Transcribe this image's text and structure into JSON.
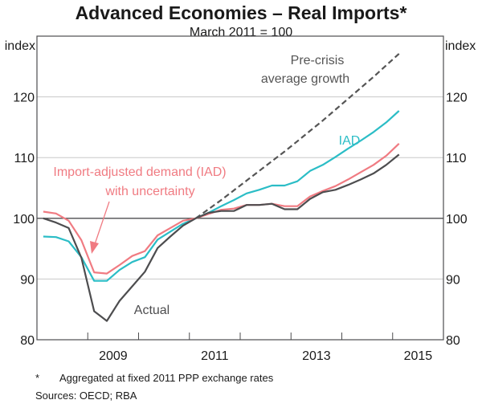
{
  "chart_data": {
    "type": "line",
    "title": "Advanced Economies – Real Imports*",
    "subtitle": "March 2011 = 100",
    "ylabel_left": "index",
    "ylabel_right": "index",
    "xlabel": "",
    "ylim": [
      80,
      130
    ],
    "yticks": [
      80,
      90,
      100,
      110,
      120
    ],
    "xlim": [
      2008.0,
      2016.0
    ],
    "xtick_labels": [
      {
        "label": "2009",
        "at": 2009.5
      },
      {
        "label": "2011",
        "at": 2011.5
      },
      {
        "label": "2013",
        "at": 2013.5
      },
      {
        "label": "2015",
        "at": 2015.5
      }
    ],
    "xtick_marks": [
      2009,
      2010,
      2011,
      2012,
      2013,
      2014,
      2015
    ],
    "grid": true,
    "reference_line": 100,
    "x": [
      "2008Q1",
      "2008Q2",
      "2008Q3",
      "2008Q4",
      "2009Q1",
      "2009Q2",
      "2009Q3",
      "2009Q4",
      "2010Q1",
      "2010Q2",
      "2010Q3",
      "2010Q4",
      "2011Q1",
      "2011Q2",
      "2011Q3",
      "2011Q4",
      "2012Q1",
      "2012Q2",
      "2012Q3",
      "2012Q4",
      "2013Q1",
      "2013Q2",
      "2013Q3",
      "2013Q4",
      "2014Q1",
      "2014Q2",
      "2014Q3",
      "2014Q4",
      "2015Q1"
    ],
    "series": [
      {
        "name": "Actual",
        "color": "#4d4d4f",
        "dash": false,
        "values": [
          100.0,
          99.3,
          98.4,
          93.5,
          84.7,
          83.1,
          86.4,
          88.8,
          91.2,
          95.1,
          97.0,
          98.8,
          100.0,
          100.9,
          101.2,
          101.2,
          102.2,
          102.2,
          102.4,
          101.5,
          101.5,
          103.2,
          104.3,
          104.7,
          105.5,
          106.4,
          107.4,
          108.8,
          110.5
        ]
      },
      {
        "name": "Import-adjusted demand (IAD) with uncertainty",
        "color": "#f07b82",
        "dash": false,
        "values": [
          101.1,
          100.8,
          99.6,
          96.4,
          91.1,
          90.9,
          92.3,
          93.8,
          94.6,
          97.2,
          98.4,
          99.6,
          100.0,
          100.7,
          101.4,
          101.6,
          102.2,
          102.2,
          102.4,
          102.0,
          102.0,
          103.6,
          104.5,
          105.3,
          106.4,
          107.6,
          108.8,
          110.3,
          112.3
        ]
      },
      {
        "name": "IAD",
        "color": "#2bbdc6",
        "dash": false,
        "values": [
          97.0,
          96.9,
          96.2,
          93.6,
          89.7,
          89.7,
          91.5,
          92.8,
          93.6,
          96.5,
          97.8,
          99.1,
          100.0,
          100.9,
          102.0,
          103.0,
          104.1,
          104.7,
          105.4,
          105.4,
          106.1,
          107.8,
          108.8,
          110.1,
          111.5,
          112.8,
          114.2,
          115.8,
          117.7
        ]
      },
      {
        "name": "Pre-crisis average growth",
        "color": "#555555",
        "dash": true,
        "values": [
          null,
          null,
          null,
          null,
          null,
          null,
          null,
          null,
          null,
          null,
          null,
          null,
          100.0,
          101.5,
          103.0,
          104.6,
          106.2,
          107.8,
          109.4,
          111.0,
          112.7,
          114.4,
          116.1,
          117.9,
          119.7,
          121.5,
          123.3,
          125.2,
          127.1
        ]
      }
    ],
    "annotations": {
      "pre_crisis_line1": "Pre-crisis",
      "pre_crisis_line2": "average growth",
      "iad": "IAD",
      "iad_uncert_line1": "Import-adjusted demand (IAD)",
      "iad_uncert_line2": "with uncertainty",
      "actual": "Actual"
    }
  },
  "footnotes": {
    "star": "*",
    "note": "Aggregated at fixed 2011 PPP exchange rates",
    "sources": "Sources:  OECD; RBA"
  },
  "colors": {
    "axis": "#4d4d4f",
    "grid": "#c8c8c8"
  }
}
